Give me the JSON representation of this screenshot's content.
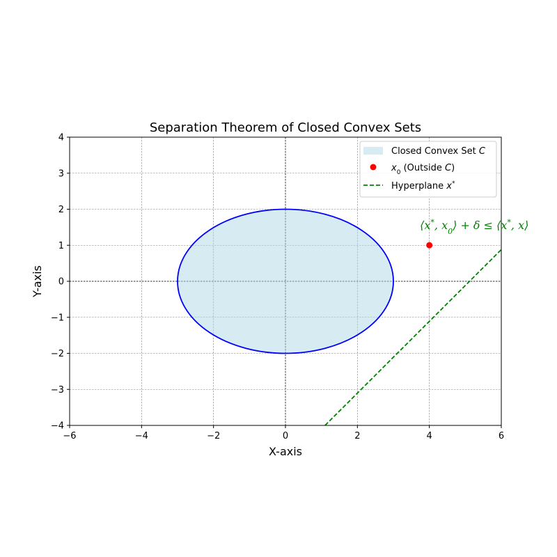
{
  "chart_data": {
    "type": "scatter",
    "title": "Separation Theorem of Closed Convex Sets",
    "xlabel": "X-axis",
    "ylabel": "Y-axis",
    "xlim": [
      -6,
      6
    ],
    "ylim": [
      -4,
      4
    ],
    "xticks": [
      -6,
      -4,
      -2,
      0,
      2,
      4,
      6
    ],
    "yticks": [
      -4,
      -3,
      -2,
      -1,
      0,
      1,
      2,
      3,
      4
    ],
    "xtick_labels": [
      "−6",
      "−4",
      "−2",
      "0",
      "2",
      "4",
      "6"
    ],
    "ytick_labels": [
      "−4",
      "−3",
      "−2",
      "−1",
      "0",
      "1",
      "2",
      "3",
      "4"
    ],
    "grid": true,
    "legend_position": "top-right",
    "convex_set": {
      "shape": "ellipse",
      "center": [
        0,
        0
      ],
      "semi_axis_x": 3,
      "semi_axis_y": 2,
      "fill_color": "#add8e6",
      "edge_color": "#0000ff"
    },
    "point": {
      "x": 4,
      "y": 1,
      "color": "#ff0000"
    },
    "hyperplane": {
      "x": [
        1.1,
        6
      ],
      "y": [
        -4,
        0.88
      ],
      "color": "#008000",
      "style": "dashed"
    },
    "legend": [
      {
        "label": "Closed Convex Set C",
        "kind": "patch",
        "color": "#add8e6"
      },
      {
        "label": "x0 (Outside C)",
        "kind": "marker",
        "color": "#ff0000"
      },
      {
        "label": "Hyperplane x*",
        "kind": "dashed-line",
        "color": "#008000"
      }
    ],
    "annotation": {
      "text": "⟨x*, x0⟩ + δ ≤ ⟨x*, x⟩",
      "x": 5.25,
      "y": 1.55,
      "color": "#008000"
    }
  }
}
